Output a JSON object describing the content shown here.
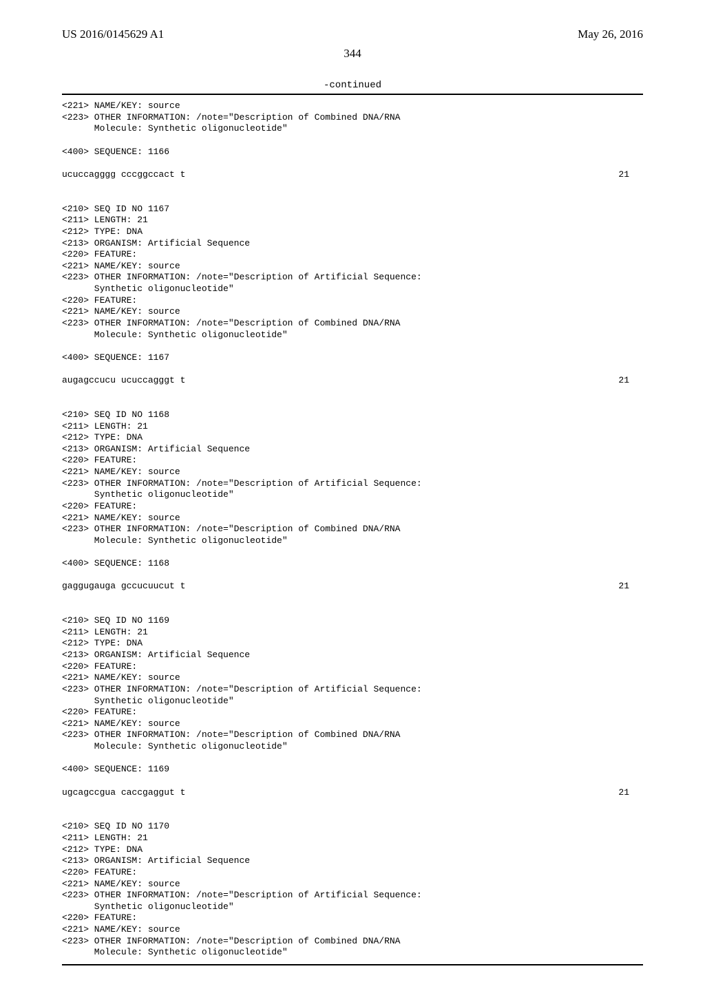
{
  "header": {
    "pub_number": "US 2016/0145629 A1",
    "pub_date": "May 26, 2016",
    "page_number": "344"
  },
  "continued_label": "-continued",
  "top_block": {
    "lines": [
      "<221> NAME/KEY: source",
      "<223> OTHER INFORMATION: /note=\"Description of Combined DNA/RNA",
      "      Molecule: Synthetic oligonucleotide\"",
      "",
      "<400> SEQUENCE: 1166"
    ],
    "seq": "ucuccagggg cccggccact t",
    "seqlen": "21"
  },
  "blocks": [
    {
      "lines": [
        "<210> SEQ ID NO 1167",
        "<211> LENGTH: 21",
        "<212> TYPE: DNA",
        "<213> ORGANISM: Artificial Sequence",
        "<220> FEATURE:",
        "<221> NAME/KEY: source",
        "<223> OTHER INFORMATION: /note=\"Description of Artificial Sequence:",
        "      Synthetic oligonucleotide\"",
        "<220> FEATURE:",
        "<221> NAME/KEY: source",
        "<223> OTHER INFORMATION: /note=\"Description of Combined DNA/RNA",
        "      Molecule: Synthetic oligonucleotide\"",
        "",
        "<400> SEQUENCE: 1167"
      ],
      "seq": "augagccucu ucuccagggt t",
      "seqlen": "21"
    },
    {
      "lines": [
        "<210> SEQ ID NO 1168",
        "<211> LENGTH: 21",
        "<212> TYPE: DNA",
        "<213> ORGANISM: Artificial Sequence",
        "<220> FEATURE:",
        "<221> NAME/KEY: source",
        "<223> OTHER INFORMATION: /note=\"Description of Artificial Sequence:",
        "      Synthetic oligonucleotide\"",
        "<220> FEATURE:",
        "<221> NAME/KEY: source",
        "<223> OTHER INFORMATION: /note=\"Description of Combined DNA/RNA",
        "      Molecule: Synthetic oligonucleotide\"",
        "",
        "<400> SEQUENCE: 1168"
      ],
      "seq": "gaggugauga gccucuucut t",
      "seqlen": "21"
    },
    {
      "lines": [
        "<210> SEQ ID NO 1169",
        "<211> LENGTH: 21",
        "<212> TYPE: DNA",
        "<213> ORGANISM: Artificial Sequence",
        "<220> FEATURE:",
        "<221> NAME/KEY: source",
        "<223> OTHER INFORMATION: /note=\"Description of Artificial Sequence:",
        "      Synthetic oligonucleotide\"",
        "<220> FEATURE:",
        "<221> NAME/KEY: source",
        "<223> OTHER INFORMATION: /note=\"Description of Combined DNA/RNA",
        "      Molecule: Synthetic oligonucleotide\"",
        "",
        "<400> SEQUENCE: 1169"
      ],
      "seq": "ugcagccgua caccgaggut t",
      "seqlen": "21"
    },
    {
      "lines": [
        "<210> SEQ ID NO 1170",
        "<211> LENGTH: 21",
        "<212> TYPE: DNA",
        "<213> ORGANISM: Artificial Sequence",
        "<220> FEATURE:",
        "<221> NAME/KEY: source",
        "<223> OTHER INFORMATION: /note=\"Description of Artificial Sequence:",
        "      Synthetic oligonucleotide\"",
        "<220> FEATURE:",
        "<221> NAME/KEY: source",
        "<223> OTHER INFORMATION: /note=\"Description of Combined DNA/RNA",
        "      Molecule: Synthetic oligonucleotide\""
      ],
      "seq": "",
      "seqlen": ""
    }
  ]
}
